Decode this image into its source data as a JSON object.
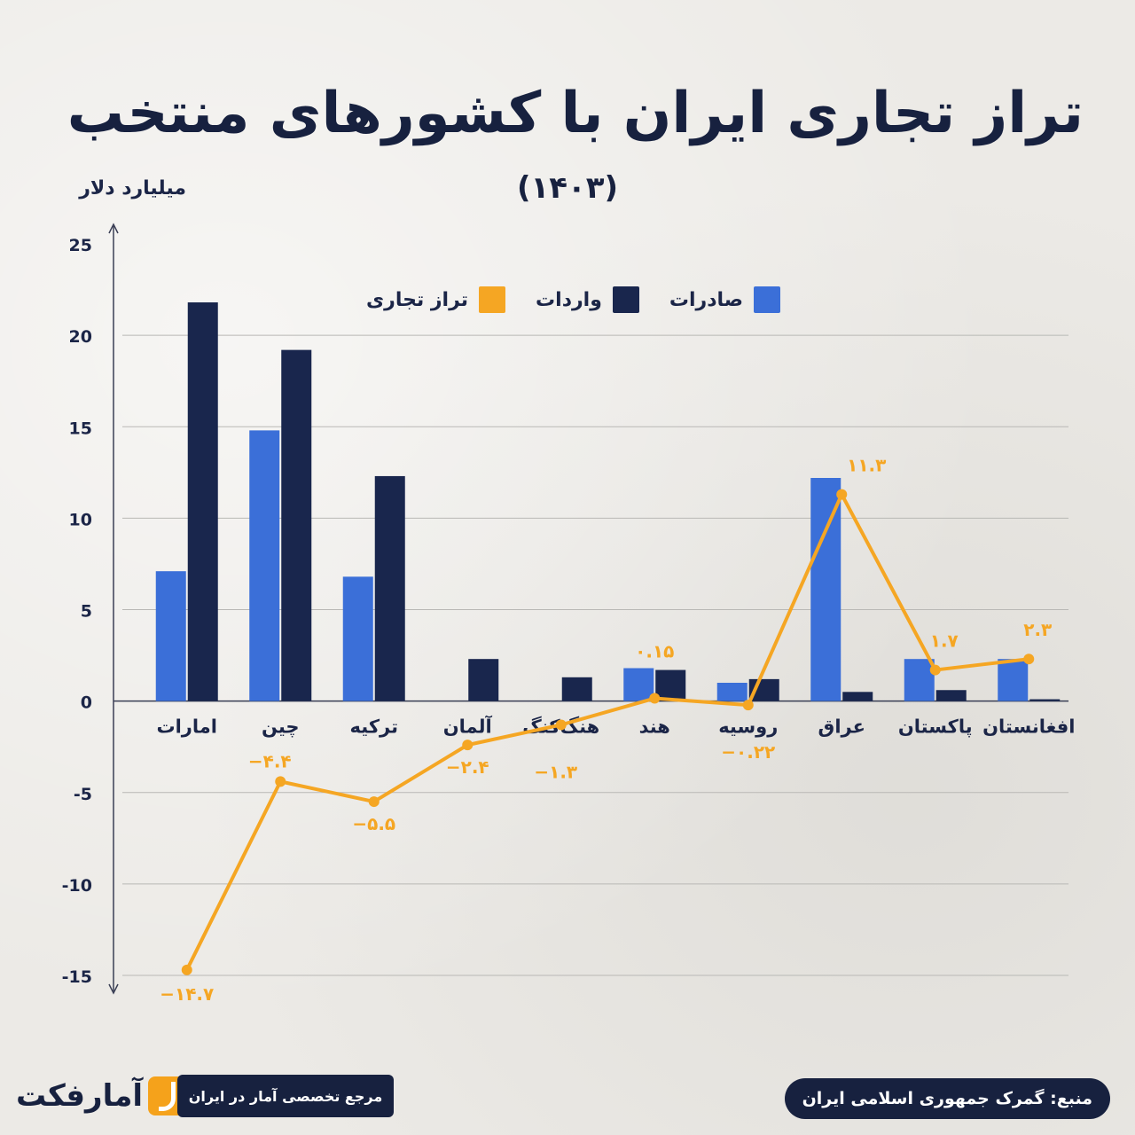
{
  "title": "تراز تجاری ایران با کشورهای منتخب",
  "subtitle": "(۱۴۰۳)",
  "unit_label": "میلیارد دلار",
  "legend": [
    {
      "key": "exports",
      "label": "صادرات",
      "color": "#3b6fd8"
    },
    {
      "key": "imports",
      "label": "واردات",
      "color": "#19264d"
    },
    {
      "key": "balance",
      "label": "تراز تجاری",
      "color": "#f5a623"
    }
  ],
  "footer": {
    "source": "منبع: گمرک جمهوری اسلامی ایران",
    "reference": "مرجع تخصصی آمار در ایران",
    "logo_text": "آمارفکت"
  },
  "chart_data": {
    "type": "bar",
    "ylim": [
      -15,
      25
    ],
    "y_ticks": [
      25,
      20,
      15,
      10,
      5,
      0,
      -5,
      -10,
      -15
    ],
    "y_tick_labels": [
      "25",
      "20",
      "15",
      "10",
      "5",
      "0",
      "-5",
      "-10",
      "-15"
    ],
    "categories": [
      "امارات",
      "چین",
      "ترکیه",
      "آلمان",
      "هنگ‌کنگ",
      "هند",
      "روسیه",
      "عراق",
      "پاکستان",
      "افغانستان"
    ],
    "series": [
      {
        "name": "صادرات",
        "type": "bar",
        "color": "#3b6fd8",
        "values": [
          7.1,
          14.8,
          6.8,
          0,
          0,
          1.8,
          1.0,
          12.2,
          2.3,
          2.3
        ]
      },
      {
        "name": "واردات",
        "type": "bar",
        "color": "#19264d",
        "values": [
          21.8,
          19.2,
          12.3,
          2.3,
          1.3,
          1.7,
          1.2,
          0.5,
          0.6,
          0.1
        ]
      },
      {
        "name": "تراز تجاری",
        "type": "line",
        "color": "#f5a623",
        "values": [
          -14.7,
          -4.4,
          -5.5,
          -2.4,
          -1.3,
          0.15,
          -0.22,
          11.3,
          1.7,
          2.3
        ]
      }
    ],
    "balance_labels": [
      "−۱۴.۷",
      "−۴.۴",
      "−۵.۵",
      "−۲.۴",
      "−۱.۳",
      "۰.۱۵",
      "−۰.۲۲",
      "۱۱.۳",
      "۱.۷",
      "۲.۳"
    ]
  }
}
